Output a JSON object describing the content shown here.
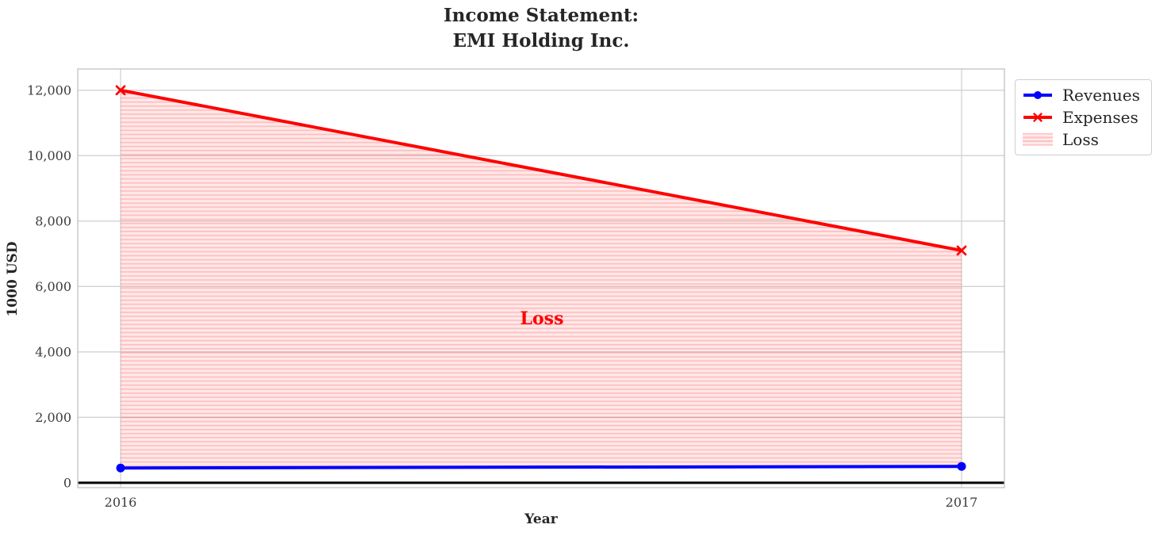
{
  "chart": {
    "title_line1": "Income Statement:",
    "title_line2": "EMI Holding Inc.",
    "xlabel": "Year",
    "ylabel": "1000 USD",
    "annotation_text": "Loss"
  },
  "legend": {
    "items": [
      {
        "label": "Revenues",
        "icon": "blue-line-circle-marker-icon"
      },
      {
        "label": "Expenses",
        "icon": "red-line-x-marker-icon"
      },
      {
        "label": "Loss",
        "icon": "pink-hatched-patch-icon"
      }
    ]
  },
  "colors": {
    "revenues_blue": "#0000ff",
    "expenses_red": "#ff0000",
    "loss_fill": "#ffe9e9",
    "loss_hatch": "#ffc0c0",
    "annotation_red": "#ff0000",
    "grid_gray": "#d2d2d2",
    "spine_gray": "#c6c6c6",
    "zero_line_black": "#000000",
    "text_dark": "#262626",
    "tick_gray": "#3b3b3b"
  },
  "chart_data": {
    "type": "line",
    "title": "Income Statement:\nEMI Holding Inc.",
    "xlabel": "Year",
    "ylabel": "1000 USD",
    "categories": [
      "2016",
      "2017"
    ],
    "series": [
      {
        "name": "Revenues",
        "color": "#0000ff",
        "marker": "circle",
        "line_width": 4,
        "values": [
          450,
          500
        ]
      },
      {
        "name": "Expenses",
        "color": "#ff0000",
        "marker": "x",
        "line_width": 4,
        "values": [
          12000,
          7100
        ]
      }
    ],
    "fill_between": {
      "name": "Loss",
      "upper": "Expenses",
      "lower": "Revenues",
      "style": "horizontal-hatch",
      "hatch_base_color": "#ff0000",
      "hatch_base_opacity": 0.085,
      "hatch_line_opacity": 0.18
    },
    "annotation": {
      "text": "Loss",
      "x_frac": 0.5,
      "y": 5000,
      "color": "#ff0000",
      "bold": true
    },
    "yticks": [
      0,
      2000,
      4000,
      6000,
      8000,
      10000,
      12000
    ],
    "ytick_labels": [
      "0",
      "2,000",
      "4,000",
      "6,000",
      "8,000",
      "10,000",
      "12,000"
    ],
    "ylim": [
      -150,
      12650
    ],
    "zero_axhline": true,
    "grid": true,
    "legend_position": "upper-right-outside"
  }
}
